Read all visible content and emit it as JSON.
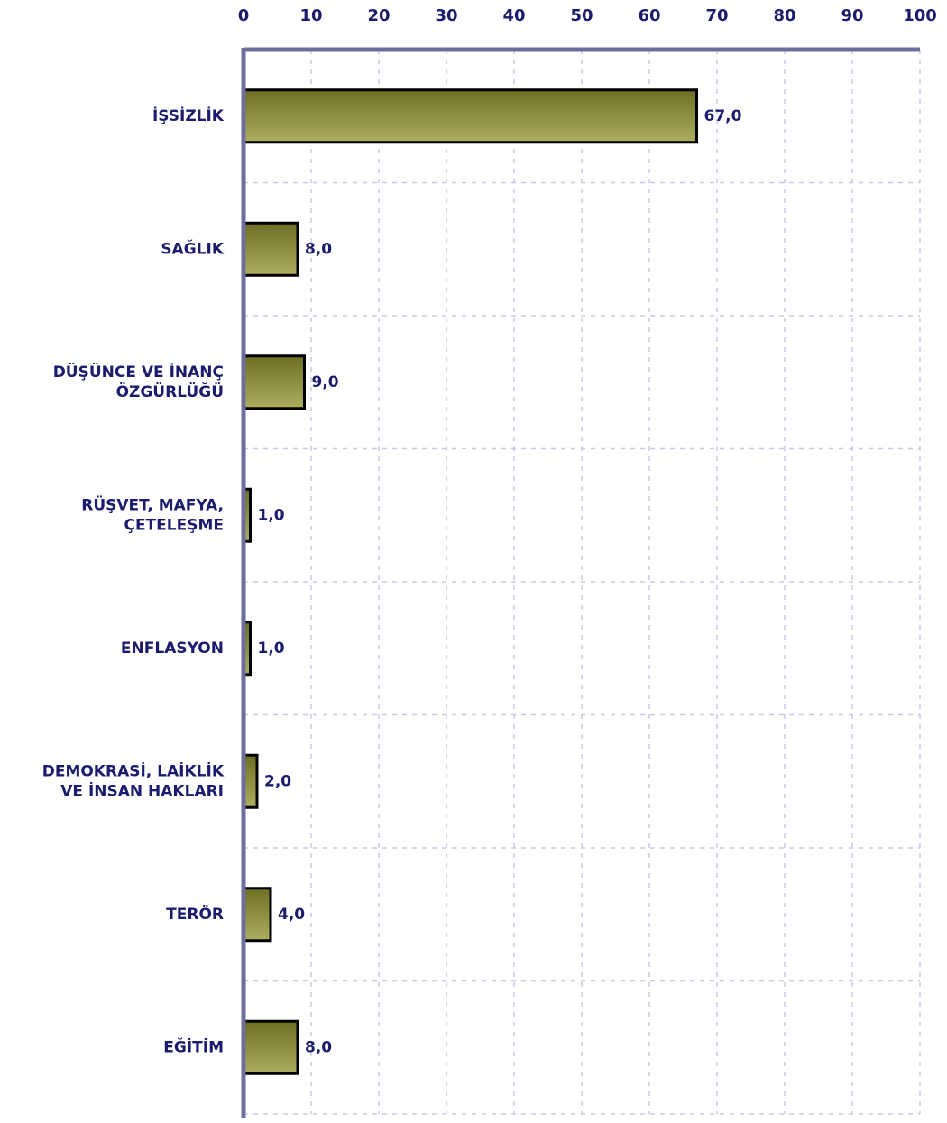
{
  "chart_data": {
    "type": "bar",
    "orientation": "horizontal",
    "categories": [
      "İŞSİZLİK",
      "SAĞLIK",
      "DÜŞÜNCE VE İNANÇ\nÖZGÜRLÜĞÜ",
      "RÜŞVET, MAFYA,\nÇETELEŞME",
      "ENFLASYON",
      "DEMOKRASİ, LAİKLİK\nVE İNSAN HAKLARI",
      "TERÖR",
      "EĞİTİM"
    ],
    "values": [
      67,
      8,
      9,
      1,
      1,
      2,
      4,
      8
    ],
    "value_labels": [
      "67,0",
      "8,0",
      "9,0",
      "1,0",
      "1,0",
      "2,0",
      "4,0",
      "8,0"
    ],
    "color": "#aeae60",
    "xlim": [
      0,
      100
    ],
    "xticks": [
      0,
      10,
      20,
      30,
      40,
      50,
      60,
      70,
      80,
      90,
      100
    ],
    "grid": true
  }
}
